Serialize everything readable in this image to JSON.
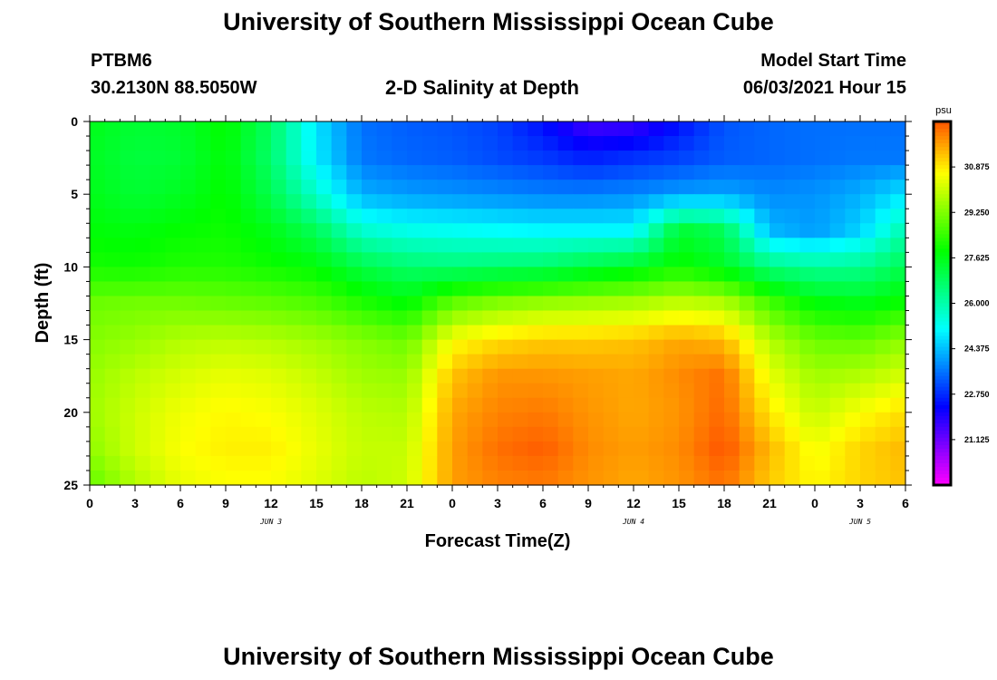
{
  "header": {
    "title": "University of Southern Mississippi Ocean Cube",
    "station_id": "PTBM6",
    "coordinates": "30.2130N  88.5050W",
    "subtitle": "2-D Salinity at Depth",
    "model_start_label": "Model Start Time",
    "model_start_value": "06/03/2021 Hour 15"
  },
  "footer": {
    "title": "University of Southern Mississippi Ocean Cube"
  },
  "chart_data": {
    "type": "heatmap",
    "title": "2-D Salinity at Depth",
    "xlabel": "Forecast Time(Z)",
    "ylabel": "Depth (ft)",
    "ylim": [
      0,
      25
    ],
    "y_inverted": true,
    "y_ticks": [
      "0",
      "5",
      "10",
      "15",
      "20",
      "25"
    ],
    "x_hours": [
      0,
      54
    ],
    "x_tick_labels": [
      "0",
      "3",
      "6",
      "9",
      "12",
      "15",
      "18",
      "21",
      "0",
      "3",
      "6",
      "9",
      "12",
      "15",
      "18",
      "21",
      "0",
      "3",
      "6"
    ],
    "date_labels": [
      {
        "text": "JUN 3",
        "hour": 12
      },
      {
        "text": "JUN 4",
        "hour": 36
      },
      {
        "text": "JUN 5",
        "hour": 51
      }
    ],
    "colorbar": {
      "unit": "psu",
      "range": [
        19.5,
        32.5
      ],
      "tick_labels": [
        "30.875",
        "29.250",
        "27.625",
        "26.000",
        "24.375",
        "22.750",
        "21.125"
      ]
    },
    "depths_ft": [
      0,
      2.5,
      5,
      7.5,
      10,
      12.5,
      15,
      17.5,
      20,
      22.5,
      25
    ],
    "times_hr": [
      0,
      3,
      6,
      9,
      12,
      15,
      18,
      21,
      24,
      27,
      30,
      33,
      36,
      39,
      42,
      45,
      48,
      51,
      54
    ],
    "salinity_psu": [
      [
        27.6,
        27.3,
        27.4,
        27.9,
        26.8,
        24.8,
        23.5,
        23.3,
        23.2,
        23.0,
        22.4,
        21.5,
        21.6,
        22.4,
        23.2,
        23.4,
        23.5,
        23.5,
        23.5
      ],
      [
        27.5,
        27.2,
        27.3,
        27.8,
        26.7,
        24.9,
        23.6,
        23.4,
        23.3,
        23.1,
        22.9,
        22.6,
        22.8,
        23.0,
        23.3,
        23.4,
        23.5,
        23.6,
        23.6
      ],
      [
        27.6,
        27.3,
        27.5,
        27.9,
        27.0,
        25.6,
        24.2,
        24.0,
        23.9,
        23.8,
        23.7,
        23.7,
        23.8,
        24.0,
        24.1,
        23.8,
        23.9,
        24.2,
        24.8
      ],
      [
        27.8,
        27.7,
        27.9,
        28.0,
        27.6,
        26.9,
        25.6,
        25.3,
        25.2,
        25.1,
        25.0,
        25.0,
        25.0,
        27.3,
        26.9,
        24.3,
        24.0,
        24.6,
        26.0
      ],
      [
        28.1,
        28.0,
        28.2,
        28.2,
        28.0,
        27.8,
        27.1,
        26.7,
        26.6,
        26.7,
        26.8,
        27.2,
        27.5,
        28.0,
        27.5,
        26.5,
        26.2,
        26.3,
        27.0
      ],
      [
        29.0,
        29.1,
        29.1,
        29.0,
        28.9,
        28.7,
        28.2,
        27.8,
        28.9,
        29.3,
        29.5,
        29.6,
        29.7,
        30.0,
        29.8,
        28.6,
        27.8,
        27.6,
        28.0
      ],
      [
        29.3,
        29.5,
        29.8,
        29.9,
        29.8,
        29.6,
        29.3,
        29.0,
        30.6,
        31.0,
        31.2,
        31.2,
        31.3,
        31.6,
        31.4,
        29.8,
        29.0,
        28.9,
        29.4
      ],
      [
        29.5,
        29.9,
        30.2,
        30.4,
        30.3,
        30.0,
        29.6,
        29.5,
        31.3,
        31.8,
        31.8,
        31.7,
        31.6,
        31.9,
        32.2,
        30.4,
        29.6,
        29.8,
        30.2
      ],
      [
        29.6,
        30.1,
        30.5,
        30.7,
        30.6,
        30.3,
        29.9,
        29.8,
        31.6,
        32.0,
        32.1,
        31.8,
        31.6,
        31.8,
        32.3,
        30.9,
        30.0,
        30.6,
        31.0
      ],
      [
        29.4,
        30.1,
        30.6,
        30.8,
        30.8,
        30.4,
        30.0,
        30.0,
        31.7,
        32.2,
        32.4,
        31.9,
        31.7,
        31.9,
        32.5,
        31.4,
        30.5,
        31.1,
        31.4
      ],
      [
        28.9,
        29.8,
        30.4,
        30.6,
        30.6,
        30.3,
        29.9,
        30.1,
        31.7,
        32.0,
        32.1,
        31.8,
        31.6,
        31.8,
        32.2,
        31.2,
        30.7,
        31.1,
        31.3
      ]
    ]
  }
}
